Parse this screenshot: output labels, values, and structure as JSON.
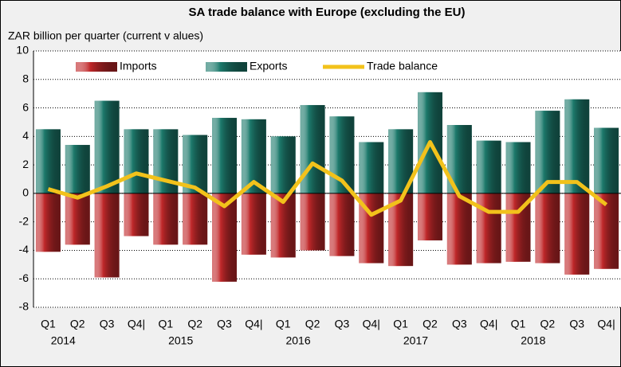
{
  "chart_data": {
    "type": "bar",
    "title": "SA trade balance with Europe (excluding the EU)",
    "y_label": "ZAR billion per quarter (current v alues)",
    "categories": [
      "Q1",
      "Q2",
      "Q3",
      "Q4|",
      "Q1",
      "Q2",
      "Q3",
      "Q4|",
      "Q1",
      "Q2",
      "Q3",
      "Q4|",
      "Q1",
      "Q2",
      "Q3",
      "Q4|",
      "Q1",
      "Q2",
      "Q3",
      "Q4|"
    ],
    "years": [
      "2014",
      "2015",
      "2016",
      "2017",
      "2018"
    ],
    "series": [
      {
        "name": "Imports",
        "color": "#c0282a",
        "values": [
          -4.1,
          -3.6,
          -5.9,
          -3.0,
          -3.6,
          -3.6,
          -6.2,
          -4.3,
          -4.5,
          -4.0,
          -4.4,
          -4.9,
          -5.1,
          -3.3,
          -5.0,
          -4.9,
          -4.8,
          -4.9,
          -5.7,
          -5.3
        ]
      },
      {
        "name": "Exports",
        "color": "#1d7a6c",
        "values": [
          4.5,
          3.4,
          6.5,
          4.5,
          4.5,
          4.1,
          5.3,
          5.2,
          4.0,
          6.2,
          5.4,
          3.6,
          4.5,
          7.1,
          4.8,
          3.7,
          3.6,
          5.8,
          6.6,
          4.6
        ]
      },
      {
        "name": "Trade balance",
        "type": "line",
        "color": "#f2c21b",
        "values": [
          0.3,
          -0.3,
          0.5,
          1.4,
          0.9,
          0.4,
          -0.9,
          0.8,
          -0.6,
          2.1,
          0.9,
          -1.5,
          -0.5,
          3.6,
          -0.2,
          -1.3,
          -1.3,
          0.8,
          0.8,
          -0.8
        ]
      }
    ],
    "ylim": [
      -8,
      10
    ],
    "yticks": [
      -8,
      -6,
      -4,
      -2,
      0,
      2,
      4,
      6,
      8,
      10
    ],
    "grid": true
  }
}
